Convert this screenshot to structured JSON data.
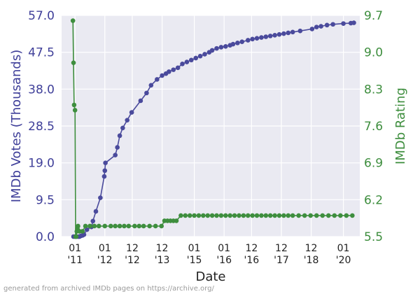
{
  "chart_data": {
    "type": "line",
    "title": "",
    "xlabel": "Date",
    "ylabel_left": "IMDb Votes (Thousands)",
    "ylabel_right": "IMDb Rating",
    "footer": "generated from archived IMDb pages on https://archive.org/",
    "grid": true,
    "legend": "none",
    "colors": {
      "background": "#eaeaf2",
      "votes": "#4a4a9c",
      "rating": "#3e8e3e",
      "grid": "#ffffff"
    },
    "x_ticks": [
      {
        "line1": "01",
        "line2": "'11",
        "x": 2011.0
      },
      {
        "line1": "01",
        "line2": "'12",
        "x": 2012.0
      },
      {
        "line1": "12",
        "line2": "'12",
        "x": 2012.92
      },
      {
        "line1": "12",
        "line2": "'13",
        "x": 2013.92
      },
      {
        "line1": "01",
        "line2": "'15",
        "x": 2015.0
      },
      {
        "line1": "01",
        "line2": "'16",
        "x": 2016.0
      },
      {
        "line1": "12",
        "line2": "'16",
        "x": 2016.92
      },
      {
        "line1": "12",
        "line2": "'17",
        "x": 2017.92
      },
      {
        "line1": "12",
        "line2": "'18",
        "x": 2018.92
      },
      {
        "line1": "01",
        "line2": "'20",
        "x": 2020.0
      }
    ],
    "xlim": [
      2010.55,
      2020.55
    ],
    "y_left": {
      "ylim": [
        0.0,
        57.0
      ],
      "ticks": [
        "0.0",
        "9.5",
        "19.0",
        "28.5",
        "38.0",
        "47.5",
        "57.0"
      ]
    },
    "y_right": {
      "ylim": [
        5.5,
        9.7
      ],
      "ticks": [
        "5.5",
        "6.2",
        "6.9",
        "7.6",
        "8.3",
        "9.0",
        "9.7"
      ]
    },
    "series": [
      {
        "axis": "left",
        "x": [
          2010.95,
          2011.0,
          2011.05,
          2011.1,
          2011.13,
          2011.15,
          2011.2,
          2011.25,
          2011.3,
          2011.4,
          2011.55,
          2011.6,
          2011.7,
          2011.85,
          2011.98,
          2012.0,
          2012.02,
          2012.35,
          2012.42,
          2012.5,
          2012.6,
          2012.75,
          2012.9,
          2013.2,
          2013.4,
          2013.55,
          2013.75,
          2013.92,
          2014.05,
          2014.15,
          2014.3,
          2014.45,
          2014.6,
          2014.75,
          2014.9,
          2015.05,
          2015.2,
          2015.35,
          2015.5,
          2015.6,
          2015.75,
          2015.9,
          2016.05,
          2016.2,
          2016.3,
          2016.45,
          2016.6,
          2016.8,
          2016.95,
          2017.1,
          2017.25,
          2017.4,
          2017.55,
          2017.7,
          2017.85,
          2018.0,
          2018.15,
          2018.3,
          2018.55,
          2018.95,
          2019.1,
          2019.25,
          2019.45,
          2019.65,
          2020.0,
          2020.25,
          2020.35
        ],
        "y": [
          0.0,
          0.0,
          0.0,
          0.0,
          0.0,
          0.0,
          0.2,
          0.3,
          0.5,
          1.8,
          2.5,
          4.0,
          6.5,
          10.0,
          15.5,
          17.0,
          19.0,
          21.0,
          23.0,
          26.0,
          28.0,
          30.0,
          32.0,
          35.0,
          37.0,
          39.0,
          40.5,
          41.5,
          42.0,
          42.5,
          43.0,
          43.5,
          44.5,
          45.0,
          45.5,
          46.0,
          46.5,
          47.0,
          47.5,
          48.0,
          48.5,
          48.8,
          49.0,
          49.3,
          49.6,
          49.9,
          50.2,
          50.6,
          50.9,
          51.1,
          51.3,
          51.5,
          51.7,
          51.9,
          52.1,
          52.3,
          52.5,
          52.7,
          53.0,
          53.5,
          54.0,
          54.2,
          54.5,
          54.7,
          54.9,
          55.0,
          55.1
        ],
        "x_shift": [
          0,
          0,
          0,
          0,
          0,
          0,
          0,
          0,
          0,
          0,
          0,
          0,
          0,
          0,
          0,
          0,
          0,
          0,
          0,
          0,
          0,
          0,
          0,
          0,
          0,
          0,
          0,
          0,
          0,
          0,
          0,
          0,
          0,
          0,
          0,
          0,
          0,
          0,
          0,
          0,
          0,
          0,
          0,
          0,
          0,
          0,
          0,
          0,
          0,
          0,
          0,
          0,
          0,
          0,
          0,
          0,
          0,
          0,
          0,
          0,
          0,
          0,
          0,
          0,
          0,
          0,
          0
        ]
      },
      {
        "axis": "right",
        "x": [
          2010.93,
          2010.95,
          2010.97,
          2011.0,
          2011.02,
          2011.04,
          2011.06,
          2011.08,
          2011.1,
          2011.15,
          2011.25,
          2011.35,
          2011.5,
          2011.65,
          2011.8,
          2012.0,
          2012.2,
          2012.35,
          2012.5,
          2012.65,
          2012.8,
          2013.0,
          2013.15,
          2013.3,
          2013.5,
          2013.7,
          2013.9,
          2014.0,
          2014.1,
          2014.2,
          2014.3,
          2014.4,
          2014.55,
          2014.7,
          2014.85,
          2015.0,
          2015.15,
          2015.3,
          2015.45,
          2015.6,
          2015.75,
          2015.9,
          2016.05,
          2016.2,
          2016.35,
          2016.5,
          2016.65,
          2016.8,
          2016.95,
          2017.1,
          2017.25,
          2017.4,
          2017.55,
          2017.7,
          2017.85,
          2018.0,
          2018.15,
          2018.3,
          2018.5,
          2018.7,
          2018.9,
          2019.1,
          2019.3,
          2019.5,
          2019.7,
          2019.9,
          2020.1,
          2020.3
        ],
        "y": [
          9.6,
          8.8,
          8.0,
          7.9,
          5.5,
          5.5,
          5.6,
          5.65,
          5.7,
          5.6,
          5.6,
          5.7,
          5.7,
          5.7,
          5.7,
          5.7,
          5.7,
          5.7,
          5.7,
          5.7,
          5.7,
          5.7,
          5.7,
          5.7,
          5.7,
          5.7,
          5.7,
          5.8,
          5.8,
          5.8,
          5.8,
          5.8,
          5.9,
          5.9,
          5.9,
          5.9,
          5.9,
          5.9,
          5.9,
          5.9,
          5.9,
          5.9,
          5.9,
          5.9,
          5.9,
          5.9,
          5.9,
          5.9,
          5.9,
          5.9,
          5.9,
          5.9,
          5.9,
          5.9,
          5.9,
          5.9,
          5.9,
          5.9,
          5.9,
          5.9,
          5.9,
          5.9,
          5.9,
          5.9,
          5.9,
          5.9,
          5.9,
          5.9
        ],
        "x_shift": [
          0,
          0,
          0,
          0,
          0,
          0,
          0,
          0,
          0,
          0,
          0,
          0,
          0,
          0,
          0,
          0,
          0,
          0,
          0,
          0,
          0,
          0,
          0,
          0,
          0,
          0,
          0,
          0,
          0,
          0,
          0,
          0,
          0,
          0,
          0,
          0,
          0,
          0,
          0,
          0,
          0,
          0,
          0,
          0,
          0,
          0,
          0,
          0,
          0,
          0,
          0,
          0,
          0,
          0,
          0,
          0,
          0,
          0,
          0,
          0,
          0,
          0,
          0,
          0,
          0,
          0,
          0,
          0
        ]
      }
    ]
  }
}
